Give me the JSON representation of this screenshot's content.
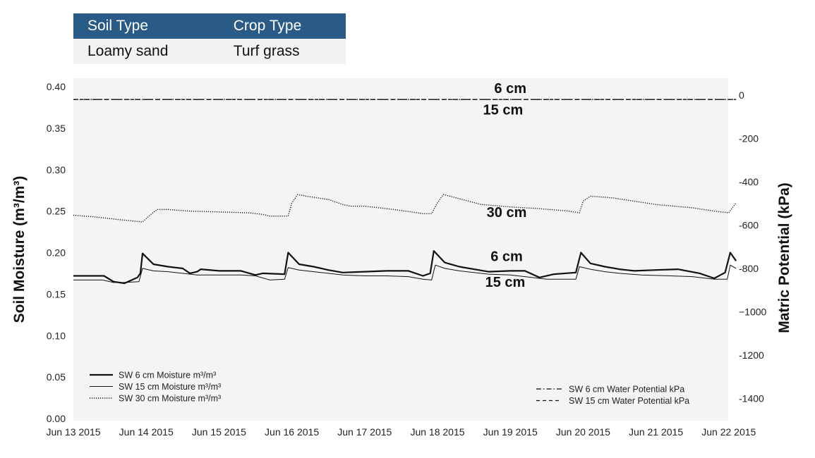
{
  "info_table": {
    "headers": [
      "Soil Type",
      "Crop Type"
    ],
    "values": [
      "Loamy sand",
      "Turf grass"
    ]
  },
  "chart_data": {
    "type": "line",
    "ylabel": "Soil Moisture (m³/m³)",
    "y2label": "Matric Potential (kPa)",
    "ylim": [
      0,
      0.4
    ],
    "y_ticks": [
      "0.00",
      "0.05",
      "0.10",
      "0.15",
      "0.20",
      "0.25",
      "0.30",
      "0.35",
      "0.40"
    ],
    "y2lim": [
      -1500,
      40
    ],
    "y2_ticks": [
      "0",
      "-200",
      "-400",
      "-600",
      "-800",
      "−1000",
      "-1200",
      "-1400"
    ],
    "x_ticks": [
      "Jun 13 2015",
      "Jun 14 2015",
      "Jun 15 2015",
      "Jun 16 2015",
      "Jun 17 2015",
      "Jun 18 2015",
      "Jun 19 2015",
      "Jun 20 2015",
      "Jun 21 2015",
      "Jun 22 2015"
    ],
    "grid": false,
    "series": [
      {
        "name": "SW 6 cm Moisture m³/m³",
        "axis": "left",
        "style": "solid-thick",
        "x": [
          0,
          0.42,
          0.55,
          0.7,
          0.88,
          0.92,
          0.95,
          1.1,
          1.3,
          1.5,
          1.6,
          1.7,
          1.75,
          2.0,
          2.3,
          2.5,
          2.6,
          2.9,
          2.95,
          3.1,
          3.3,
          3.5,
          3.7,
          4.0,
          4.3,
          4.6,
          4.8,
          4.9,
          4.95,
          5.1,
          5.3,
          5.5,
          5.7,
          6.0,
          6.2,
          6.4,
          6.6,
          6.9,
          6.97,
          7.1,
          7.3,
          7.5,
          7.7,
          8.0,
          8.3,
          8.6,
          8.8,
          8.95,
          9.02,
          9.1
        ],
        "y": [
          0.172,
          0.172,
          0.165,
          0.163,
          0.17,
          0.175,
          0.199,
          0.186,
          0.183,
          0.181,
          0.175,
          0.177,
          0.18,
          0.178,
          0.178,
          0.173,
          0.175,
          0.174,
          0.2,
          0.186,
          0.183,
          0.179,
          0.176,
          0.177,
          0.178,
          0.178,
          0.172,
          0.175,
          0.202,
          0.188,
          0.183,
          0.18,
          0.177,
          0.178,
          0.178,
          0.17,
          0.174,
          0.176,
          0.2,
          0.187,
          0.183,
          0.18,
          0.178,
          0.179,
          0.18,
          0.175,
          0.169,
          0.176,
          0.2,
          0.19
        ]
      },
      {
        "name": "SW 15 cm Moisture m³/m³",
        "axis": "left",
        "style": "solid-thin",
        "x": [
          0,
          0.4,
          0.55,
          0.7,
          0.9,
          0.95,
          1.1,
          1.3,
          1.5,
          1.7,
          2.0,
          2.3,
          2.5,
          2.7,
          2.9,
          2.95,
          3.1,
          3.3,
          3.5,
          3.7,
          4.0,
          4.3,
          4.6,
          4.8,
          4.92,
          4.97,
          5.1,
          5.3,
          5.5,
          5.7,
          6.0,
          6.2,
          6.5,
          6.9,
          6.95,
          7.1,
          7.3,
          7.5,
          7.8,
          8.2,
          8.5,
          8.8,
          8.98,
          9.02,
          9.1
        ],
        "y": [
          0.167,
          0.167,
          0.164,
          0.164,
          0.165,
          0.181,
          0.178,
          0.177,
          0.175,
          0.173,
          0.173,
          0.173,
          0.172,
          0.167,
          0.168,
          0.182,
          0.179,
          0.177,
          0.175,
          0.173,
          0.172,
          0.172,
          0.171,
          0.168,
          0.167,
          0.185,
          0.181,
          0.178,
          0.176,
          0.174,
          0.173,
          0.171,
          0.168,
          0.168,
          0.183,
          0.18,
          0.177,
          0.175,
          0.173,
          0.172,
          0.171,
          0.168,
          0.168,
          0.185,
          0.181
        ]
      },
      {
        "name": "SW 30 cm Moisture m³/m³",
        "axis": "left",
        "style": "dotted",
        "x": [
          0,
          0.3,
          0.6,
          0.95,
          1.05,
          1.15,
          1.3,
          1.6,
          2.0,
          2.4,
          2.6,
          2.7,
          2.95,
          3.0,
          3.08,
          3.2,
          3.5,
          3.7,
          3.8,
          4.0,
          4.4,
          4.8,
          4.92,
          5.0,
          5.08,
          5.3,
          5.6,
          6.0,
          6.4,
          6.8,
          6.95,
          7.0,
          7.1,
          7.4,
          7.7,
          8.0,
          8.5,
          8.8,
          9.0,
          9.1
        ],
        "y": [
          0.245,
          0.243,
          0.24,
          0.237,
          0.245,
          0.252,
          0.252,
          0.25,
          0.249,
          0.248,
          0.246,
          0.244,
          0.244,
          0.26,
          0.27,
          0.268,
          0.264,
          0.258,
          0.256,
          0.256,
          0.252,
          0.247,
          0.247,
          0.26,
          0.27,
          0.265,
          0.258,
          0.255,
          0.253,
          0.25,
          0.248,
          0.262,
          0.268,
          0.266,
          0.262,
          0.258,
          0.254,
          0.25,
          0.248,
          0.26
        ]
      },
      {
        "name": "SW 6 cm Water Potential kPa",
        "axis": "right",
        "style": "dash-dot",
        "x": [
          0,
          9.1
        ],
        "y": [
          -20,
          -20
        ]
      },
      {
        "name": "SW 15 cm Water Potential kPa",
        "axis": "right",
        "style": "dashed",
        "x": [
          0,
          9.1
        ],
        "y": [
          -20,
          -20
        ]
      }
    ],
    "annotations": [
      {
        "text": "6 cm",
        "x": 6.0,
        "y2": 10
      },
      {
        "text": "15 cm",
        "x": 5.9,
        "y2": -90
      },
      {
        "text": "30 cm",
        "x": 5.95,
        "y": 0.243
      },
      {
        "text": "6 cm",
        "x": 5.95,
        "y": 0.19
      },
      {
        "text": "15 cm",
        "x": 5.93,
        "y": 0.159
      }
    ],
    "legend_left": [
      "SW 6 cm Moisture m³/m³",
      "SW 15 cm Moisture m³/m³",
      "SW 30 cm Moisture m³/m³"
    ],
    "legend_right": [
      "SW 6 cm Water Potential kPa",
      "SW 15 cm Water Potential kPa"
    ]
  }
}
